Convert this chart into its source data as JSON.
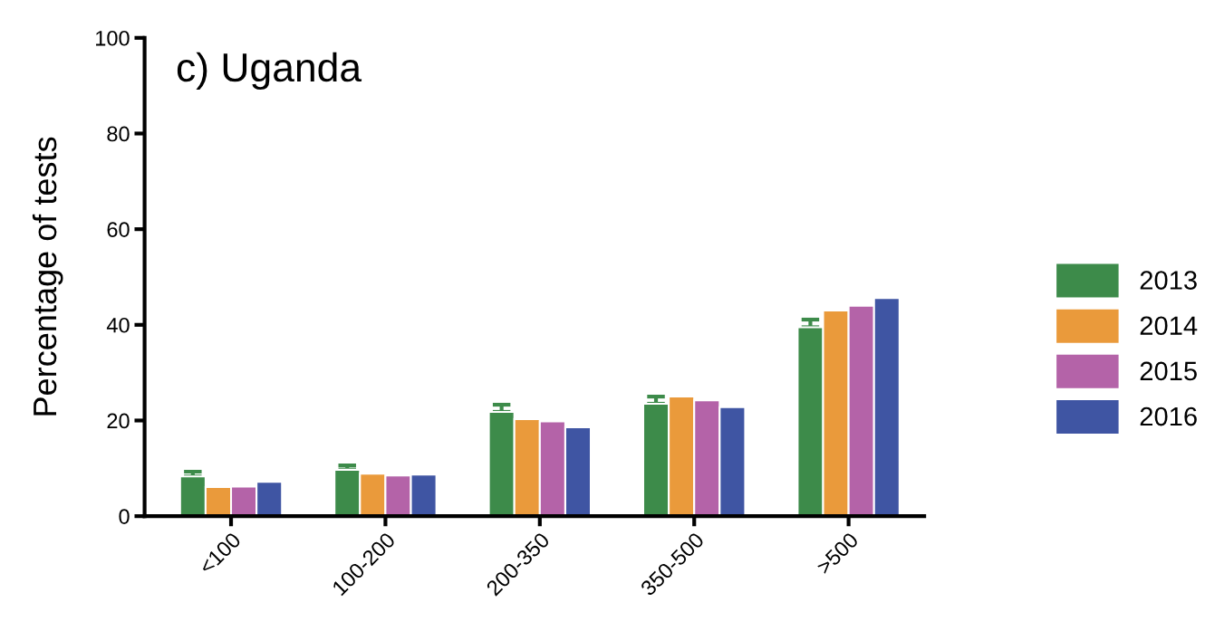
{
  "chart_data": {
    "type": "bar",
    "title": "c) Uganda",
    "ylabel": "Percentage of tests",
    "categories": [
      "<100",
      "100-200",
      "200-350",
      "350-500",
      ">500"
    ],
    "series": [
      {
        "name": "2013",
        "color": "#3d8b4a",
        "values": [
          8.3,
          9.7,
          21.8,
          23.5,
          39.5
        ],
        "errors": [
          [
            8.3,
            9.3
          ],
          [
            9.7,
            10.6
          ],
          [
            21.8,
            23.3
          ],
          [
            23.5,
            25.0
          ],
          [
            39.5,
            41.1
          ]
        ]
      },
      {
        "name": "2014",
        "color": "#ea9a3b",
        "values": [
          6.1,
          8.9,
          20.3,
          25.0,
          43.0
        ]
      },
      {
        "name": "2015",
        "color": "#b463a8",
        "values": [
          6.2,
          8.5,
          19.8,
          24.2,
          44.0
        ]
      },
      {
        "name": "2016",
        "color": "#3f55a3",
        "values": [
          7.2,
          8.7,
          18.6,
          22.8,
          45.6
        ]
      }
    ],
    "ylim": [
      0,
      100
    ],
    "yticks": [
      0,
      20,
      40,
      60,
      80,
      100
    ],
    "grid": false,
    "legend": "right"
  }
}
